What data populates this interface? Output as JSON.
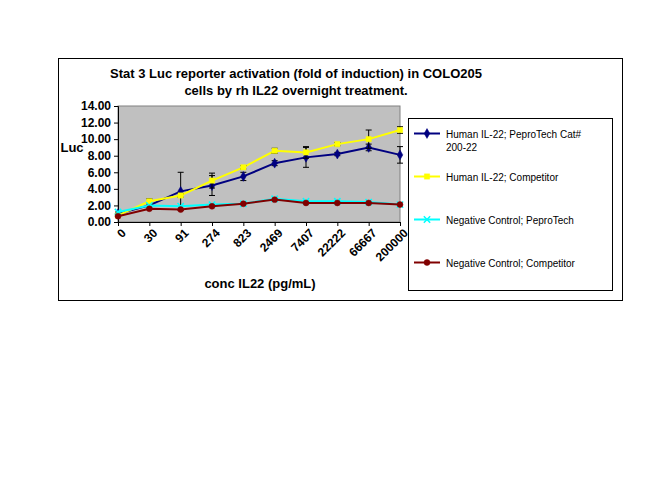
{
  "chart_data": {
    "type": "line",
    "title": "Stat 3 Luc reporter activation (fold of induction) in COLO205 cells by rh IL22 overnight treatment.",
    "x_label": "conc IL22 (pg/mL)",
    "y_label": "Luc",
    "categories": [
      "0",
      "30",
      "91",
      "274",
      "823",
      "2469",
      "7407",
      "22222",
      "66667",
      "200000"
    ],
    "ylim": [
      0,
      14
    ],
    "yticks": [
      {
        "value": 0,
        "label": "0.00"
      },
      {
        "value": 2,
        "label": "2.00"
      },
      {
        "value": 4,
        "label": "4.00"
      },
      {
        "value": 6,
        "label": "6.00"
      },
      {
        "value": 8,
        "label": "8.00"
      },
      {
        "value": 10,
        "label": "10.00"
      },
      {
        "value": 12,
        "label": "12.00"
      },
      {
        "value": 14,
        "label": "14.00"
      }
    ],
    "grid": false,
    "legend": "right",
    "series": [
      {
        "name": "Human IL-22; PeproTech Cat# 200-22",
        "color": "#000080",
        "marker": "diamond",
        "values": [
          1.0,
          2.0,
          3.7,
          4.4,
          5.5,
          7.1,
          7.8,
          8.2,
          9.0,
          8.1
        ],
        "errors": [
          0.2,
          0.3,
          2.3,
          1.2,
          0.5,
          0.3,
          1.2,
          0.2,
          0.4,
          1.0
        ]
      },
      {
        "name": "Human IL-22; Competitor",
        "color": "#ffff00",
        "marker": "square",
        "values": [
          0.8,
          2.5,
          3.2,
          5.0,
          6.6,
          8.6,
          8.4,
          9.4,
          10.0,
          11.1
        ],
        "errors": [
          0.2,
          0.3,
          0.2,
          0.9,
          0.2,
          0.3,
          0.7,
          0.2,
          1.1,
          0.4
        ]
      },
      {
        "name": "Negative Control; PeproTech",
        "color": "#00ffff",
        "marker": "x",
        "values": [
          1.2,
          2.0,
          1.9,
          2.1,
          2.2,
          2.8,
          2.5,
          2.5,
          2.4,
          2.1
        ]
      },
      {
        "name": "Negative Control; Competitor",
        "color": "#800000",
        "marker": "circle",
        "values": [
          0.7,
          1.6,
          1.5,
          1.9,
          2.2,
          2.7,
          2.3,
          2.3,
          2.3,
          2.1
        ]
      }
    ]
  }
}
